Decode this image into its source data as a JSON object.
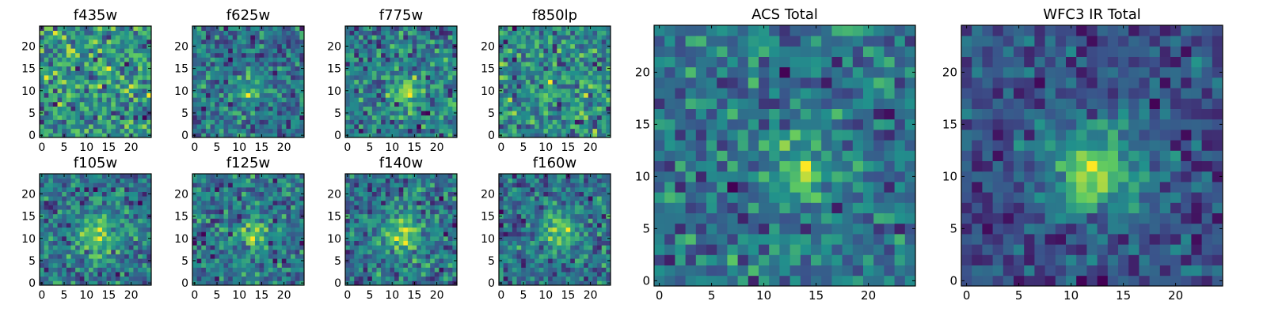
{
  "figure": {
    "colormap": [
      "#440154",
      "#3b528b",
      "#21918c",
      "#5ec962",
      "#fde725"
    ]
  },
  "chart_data": [
    {
      "type": "heatmap",
      "title": "f435w",
      "grid": 25,
      "x_ticks": [
        0,
        5,
        10,
        15,
        20
      ],
      "y_ticks": [
        0,
        5,
        10,
        15,
        20
      ],
      "xlim": [
        0,
        24
      ],
      "ylim": [
        0,
        24
      ],
      "source": {
        "center": [
          12.5,
          10.5
        ],
        "sigma": 2.0,
        "amplitude": 0.15
      },
      "noise": 0.55,
      "seed": 11
    },
    {
      "type": "heatmap",
      "title": "f625w",
      "grid": 25,
      "x_ticks": [
        0,
        5,
        10,
        15,
        20
      ],
      "y_ticks": [
        0,
        5,
        10,
        15,
        20
      ],
      "xlim": [
        0,
        24
      ],
      "ylim": [
        0,
        24
      ],
      "source": {
        "center": [
          12.5,
          10.0
        ],
        "sigma": 2.0,
        "amplitude": 0.45
      },
      "noise": 0.45,
      "seed": 23
    },
    {
      "type": "heatmap",
      "title": "f775w",
      "grid": 25,
      "x_ticks": [
        0,
        5,
        10,
        15,
        20
      ],
      "y_ticks": [
        0,
        5,
        10,
        15,
        20
      ],
      "xlim": [
        0,
        24
      ],
      "ylim": [
        0,
        24
      ],
      "source": {
        "center": [
          13.5,
          10.0
        ],
        "sigma": 2.2,
        "amplitude": 0.55
      },
      "noise": 0.42,
      "seed": 37
    },
    {
      "type": "heatmap",
      "title": "f850lp",
      "grid": 25,
      "x_ticks": [
        0,
        5,
        10,
        15,
        20
      ],
      "y_ticks": [
        0,
        5,
        10,
        15,
        20
      ],
      "xlim": [
        0,
        24
      ],
      "ylim": [
        0,
        24
      ],
      "source": {
        "center": [
          12.5,
          10.5
        ],
        "sigma": 2.0,
        "amplitude": 0.2
      },
      "noise": 0.55,
      "seed": 41
    },
    {
      "type": "heatmap",
      "title": "f105w",
      "grid": 25,
      "x_ticks": [
        0,
        5,
        10,
        15,
        20
      ],
      "y_ticks": [
        0,
        5,
        10,
        15,
        20
      ],
      "xlim": [
        0,
        24
      ],
      "ylim": [
        0,
        24
      ],
      "source": {
        "center": [
          12.5,
          10.5
        ],
        "sigma": 3.0,
        "amplitude": 0.5
      },
      "noise": 0.35,
      "seed": 53
    },
    {
      "type": "heatmap",
      "title": "f125w",
      "grid": 25,
      "x_ticks": [
        0,
        5,
        10,
        15,
        20
      ],
      "y_ticks": [
        0,
        5,
        10,
        15,
        20
      ],
      "xlim": [
        0,
        24
      ],
      "ylim": [
        0,
        24
      ],
      "source": {
        "center": [
          13.0,
          10.5
        ],
        "sigma": 2.5,
        "amplitude": 0.45
      },
      "noise": 0.38,
      "seed": 67
    },
    {
      "type": "heatmap",
      "title": "f140w",
      "grid": 25,
      "x_ticks": [
        0,
        5,
        10,
        15,
        20
      ],
      "y_ticks": [
        0,
        5,
        10,
        15,
        20
      ],
      "xlim": [
        0,
        24
      ],
      "ylim": [
        0,
        24
      ],
      "source": {
        "center": [
          12.5,
          11.0
        ],
        "sigma": 3.2,
        "amplitude": 0.5
      },
      "noise": 0.36,
      "seed": 79
    },
    {
      "type": "heatmap",
      "title": "f160w",
      "grid": 25,
      "x_ticks": [
        0,
        5,
        10,
        15,
        20
      ],
      "y_ticks": [
        0,
        5,
        10,
        15,
        20
      ],
      "xlim": [
        0,
        24
      ],
      "ylim": [
        0,
        24
      ],
      "source": {
        "center": [
          13.0,
          11.5
        ],
        "sigma": 3.0,
        "amplitude": 0.55
      },
      "noise": 0.35,
      "seed": 83
    },
    {
      "type": "heatmap",
      "title": "ACS Total",
      "grid": 25,
      "x_ticks": [
        0,
        5,
        10,
        15,
        20
      ],
      "y_ticks": [
        0,
        5,
        10,
        15,
        20
      ],
      "xlim": [
        0,
        24
      ],
      "ylim": [
        0,
        24
      ],
      "source": {
        "center": [
          13.5,
          10.5
        ],
        "sigma": 2.0,
        "amplitude": 0.55
      },
      "noise": 0.38,
      "seed": 97
    },
    {
      "type": "heatmap",
      "title": "WFC3 IR Total",
      "grid": 25,
      "x_ticks": [
        0,
        5,
        10,
        15,
        20
      ],
      "y_ticks": [
        0,
        5,
        10,
        15,
        20
      ],
      "xlim": [
        0,
        24
      ],
      "ylim": [
        0,
        24
      ],
      "source": {
        "center": [
          12.5,
          10.5
        ],
        "sigma": 3.0,
        "amplitude": 0.6
      },
      "noise": 0.25,
      "seed": 101
    }
  ]
}
